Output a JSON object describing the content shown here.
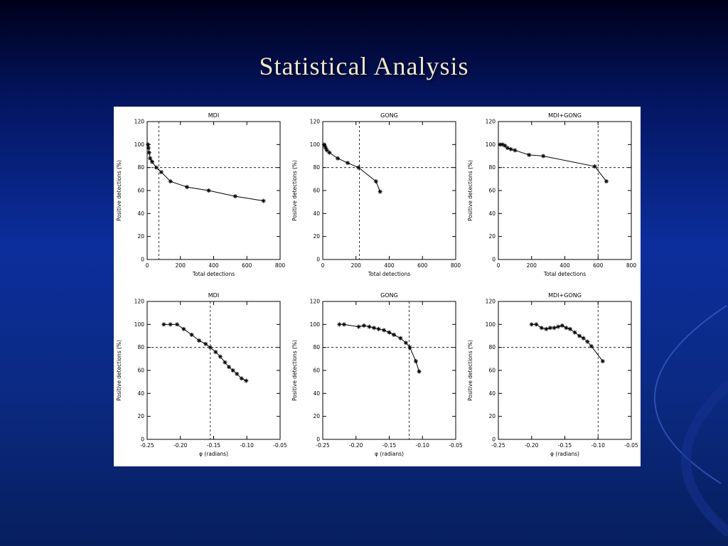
{
  "slide": {
    "title": "Statistical Analysis"
  },
  "colors": {
    "background_top": "#00001a",
    "background_mid": "#0c2e9c",
    "background_bottom": "#071f5e",
    "title_text": "#ece7c8",
    "panel": "#ffffff",
    "plot": "#000000",
    "swoosh_light": "#3a60c8",
    "swoosh_dark": "#16308e"
  },
  "chart_data": [
    {
      "type": "line",
      "title": "MDI",
      "xlabel": "Total detections",
      "ylabel": "Positive detections (%)",
      "xlim": [
        0,
        800
      ],
      "ylim": [
        0,
        120
      ],
      "xticks": [
        0,
        200,
        400,
        600,
        800
      ],
      "xtick_labels": [
        "0",
        "200",
        "400",
        "600",
        "800"
      ],
      "yticks": [
        0,
        20,
        40,
        60,
        80,
        100,
        120
      ],
      "ytick_labels": [
        "0",
        "20",
        "40",
        "60",
        "80",
        "100",
        "120"
      ],
      "grid": false,
      "legend": "none",
      "hline": 80,
      "vline": 70,
      "points": [
        [
          5,
          100
        ],
        [
          8,
          97
        ],
        [
          12,
          93
        ],
        [
          18,
          88
        ],
        [
          30,
          85
        ],
        [
          55,
          80
        ],
        [
          85,
          76
        ],
        [
          140,
          68
        ],
        [
          240,
          63
        ],
        [
          370,
          60
        ],
        [
          530,
          55
        ],
        [
          700,
          51
        ]
      ]
    },
    {
      "type": "line",
      "title": "GONG",
      "xlabel": "Total detections",
      "ylabel": "Positive detections (%)",
      "xlim": [
        0,
        800
      ],
      "ylim": [
        0,
        120
      ],
      "xticks": [
        0,
        200,
        400,
        600,
        800
      ],
      "xtick_labels": [
        "0",
        "200",
        "400",
        "600",
        "800"
      ],
      "yticks": [
        0,
        20,
        40,
        60,
        80,
        100,
        120
      ],
      "ytick_labels": [
        "0",
        "20",
        "40",
        "60",
        "80",
        "100",
        "120"
      ],
      "grid": false,
      "legend": "none",
      "hline": 80,
      "vline": 220,
      "points": [
        [
          8,
          100
        ],
        [
          12,
          99
        ],
        [
          18,
          97
        ],
        [
          25,
          95
        ],
        [
          40,
          93
        ],
        [
          90,
          88
        ],
        [
          150,
          84
        ],
        [
          215,
          80
        ],
        [
          320,
          68
        ],
        [
          345,
          59
        ]
      ]
    },
    {
      "type": "line",
      "title": "MDI+GONG",
      "xlabel": "Total detections",
      "ylabel": "Positive detections (%)",
      "xlim": [
        0,
        800
      ],
      "ylim": [
        0,
        120
      ],
      "xticks": [
        0,
        200,
        400,
        600,
        800
      ],
      "xtick_labels": [
        "0",
        "200",
        "400",
        "600",
        "800"
      ],
      "yticks": [
        0,
        20,
        40,
        60,
        80,
        100,
        120
      ],
      "ytick_labels": [
        "0",
        "20",
        "40",
        "60",
        "80",
        "100",
        "120"
      ],
      "grid": false,
      "legend": "none",
      "hline": 80,
      "vline": 600,
      "points": [
        [
          10,
          100
        ],
        [
          25,
          100
        ],
        [
          40,
          99
        ],
        [
          55,
          97
        ],
        [
          75,
          96
        ],
        [
          100,
          95
        ],
        [
          185,
          91
        ],
        [
          270,
          90
        ],
        [
          580,
          81
        ],
        [
          650,
          68
        ]
      ]
    },
    {
      "type": "line",
      "title": "MDI",
      "xlabel": "φ (radians)",
      "ylabel": "Positive detections (%)",
      "xlim": [
        -0.25,
        -0.05
      ],
      "ylim": [
        0,
        120
      ],
      "xticks": [
        -0.25,
        -0.2,
        -0.15,
        -0.1,
        -0.05
      ],
      "xtick_labels": [
        "-0.25",
        "-0.20",
        "-0.15",
        "-0.10",
        "-0.05"
      ],
      "yticks": [
        0,
        20,
        40,
        60,
        80,
        100,
        120
      ],
      "ytick_labels": [
        "0",
        "20",
        "40",
        "60",
        "80",
        "100",
        "120"
      ],
      "grid": false,
      "legend": "none",
      "hline": 80,
      "vline": -0.155,
      "points": [
        [
          -0.225,
          100
        ],
        [
          -0.215,
          100
        ],
        [
          -0.205,
          100
        ],
        [
          -0.195,
          96
        ],
        [
          -0.183,
          91
        ],
        [
          -0.172,
          86
        ],
        [
          -0.162,
          83
        ],
        [
          -0.155,
          80
        ],
        [
          -0.147,
          76
        ],
        [
          -0.14,
          72
        ],
        [
          -0.133,
          67
        ],
        [
          -0.127,
          63
        ],
        [
          -0.121,
          60
        ],
        [
          -0.115,
          57
        ],
        [
          -0.108,
          53
        ],
        [
          -0.101,
          51
        ]
      ]
    },
    {
      "type": "line",
      "title": "GONG",
      "xlabel": "φ (radians)",
      "ylabel": "Positive detections (%)",
      "xlim": [
        -0.25,
        -0.05
      ],
      "ylim": [
        0,
        120
      ],
      "xticks": [
        -0.25,
        -0.2,
        -0.15,
        -0.1,
        -0.05
      ],
      "xtick_labels": [
        "-0.25",
        "-0.20",
        "-0.15",
        "-0.10",
        "-0.05"
      ],
      "yticks": [
        0,
        20,
        40,
        60,
        80,
        100,
        120
      ],
      "ytick_labels": [
        "0",
        "20",
        "40",
        "60",
        "80",
        "100",
        "120"
      ],
      "grid": false,
      "legend": "none",
      "hline": 80,
      "vline": -0.12,
      "points": [
        [
          -0.225,
          100
        ],
        [
          -0.218,
          100
        ],
        [
          -0.196,
          98
        ],
        [
          -0.188,
          99
        ],
        [
          -0.18,
          98
        ],
        [
          -0.173,
          97
        ],
        [
          -0.166,
          96
        ],
        [
          -0.158,
          95
        ],
        [
          -0.15,
          93
        ],
        [
          -0.143,
          91
        ],
        [
          -0.133,
          88
        ],
        [
          -0.125,
          84
        ],
        [
          -0.119,
          80
        ],
        [
          -0.11,
          68
        ],
        [
          -0.105,
          59
        ]
      ]
    },
    {
      "type": "line",
      "title": "MDI+GONG",
      "xlabel": "φ (radians)",
      "ylabel": "Positive detections (%)",
      "xlim": [
        -0.25,
        -0.05
      ],
      "ylim": [
        0,
        120
      ],
      "xticks": [
        -0.25,
        -0.2,
        -0.15,
        -0.1,
        -0.05
      ],
      "xtick_labels": [
        "-0.25",
        "-0.20",
        "-0.15",
        "-0.10",
        "-0.05"
      ],
      "yticks": [
        0,
        20,
        40,
        60,
        80,
        100,
        120
      ],
      "ytick_labels": [
        "0",
        "20",
        "40",
        "60",
        "80",
        "100",
        "120"
      ],
      "grid": false,
      "legend": "none",
      "hline": 80,
      "vline": -0.1,
      "points": [
        [
          -0.2,
          100
        ],
        [
          -0.193,
          100
        ],
        [
          -0.185,
          97
        ],
        [
          -0.178,
          96
        ],
        [
          -0.172,
          97
        ],
        [
          -0.166,
          97
        ],
        [
          -0.16,
          98
        ],
        [
          -0.154,
          99
        ],
        [
          -0.148,
          97
        ],
        [
          -0.142,
          96
        ],
        [
          -0.135,
          93
        ],
        [
          -0.128,
          90
        ],
        [
          -0.122,
          88
        ],
        [
          -0.116,
          85
        ],
        [
          -0.11,
          81
        ],
        [
          -0.093,
          68
        ]
      ]
    }
  ]
}
